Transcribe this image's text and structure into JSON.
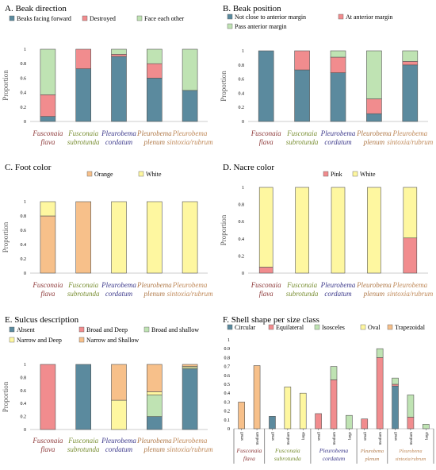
{
  "colors": {
    "slate": "#5B8A9E",
    "pink": "#F18C8E",
    "green": "#BFE3B3",
    "orange": "#F7C08A",
    "yellow": "#FEF7A0",
    "species": [
      "#8E3A3A",
      "#7A8F34",
      "#3E3B8C",
      "#B07A4A",
      "#C08A5A"
    ]
  },
  "chart_data": [
    {
      "type": "bar",
      "stacked": true,
      "title": "A. Beak direction",
      "xlabel": "",
      "ylabel": "Proportion",
      "ylim": [
        0,
        1
      ],
      "yticks": [
        "0",
        "0.2",
        "0.4",
        "0.6",
        "0.8",
        "1"
      ],
      "categories": [
        [
          "Fusconaia",
          "flava"
        ],
        [
          "Fusconaia",
          "subrotunda"
        ],
        [
          "Pleurobema",
          "cordatum"
        ],
        [
          "Pleurobema",
          "plenum"
        ],
        [
          "Pleurobema",
          "sintoxia/rubrum"
        ]
      ],
      "series": [
        {
          "name": "Beaks facing forward",
          "color": "slate",
          "values": [
            0.07,
            0.73,
            0.9,
            0.6,
            0.43
          ]
        },
        {
          "name": "Destroyed",
          "color": "pink",
          "values": [
            0.3,
            0.27,
            0.03,
            0.2,
            0
          ]
        },
        {
          "name": "Face each other",
          "color": "green",
          "values": [
            0.63,
            0,
            0.07,
            0.2,
            0.57
          ]
        }
      ]
    },
    {
      "type": "bar",
      "stacked": true,
      "title": "B. Beak position",
      "xlabel": "",
      "ylabel": "Proportion",
      "ylim": [
        0,
        1
      ],
      "yticks": [
        "0",
        "0.2",
        "0.4",
        "0.6",
        "0.8",
        "1"
      ],
      "categories": [
        [
          "Fusconaia",
          "flava"
        ],
        [
          "Fusconaia",
          "subrotunda"
        ],
        [
          "Pleurobema",
          "cordatum"
        ],
        [
          "Pleurobema",
          "plenum"
        ],
        [
          "Pleurobema",
          "sintoxia/rubrum"
        ]
      ],
      "series": [
        {
          "name": "Not close to anterior margin",
          "color": "slate",
          "values": [
            1,
            0.73,
            0.69,
            0.11,
            0.8
          ]
        },
        {
          "name": "At anterior margin",
          "color": "pink",
          "values": [
            0,
            0.27,
            0.22,
            0.21,
            0.05
          ]
        },
        {
          "name": "Pass anterior margin",
          "color": "green",
          "values": [
            0,
            0,
            0.09,
            0.68,
            0.15
          ]
        }
      ]
    },
    {
      "type": "bar",
      "stacked": true,
      "title": "C. Foot color",
      "xlabel": "",
      "ylabel": "Proportion",
      "ylim": [
        0,
        1
      ],
      "yticks": [
        "0",
        "0.2",
        "0.4",
        "0.6",
        "0.8",
        "1"
      ],
      "categories": [
        [
          "Fusconaia",
          "flava"
        ],
        [
          "Fusconaia",
          "subrotunda"
        ],
        [
          "Pleurobema",
          "cordatum"
        ],
        [
          "Pleurobema",
          "plenum"
        ],
        [
          "Pleurobema",
          "sintoxia/rubrum"
        ]
      ],
      "series": [
        {
          "name": "Orange",
          "color": "orange",
          "values": [
            0.8,
            1,
            0,
            0,
            0
          ]
        },
        {
          "name": "White",
          "color": "yellow",
          "values": [
            0.2,
            0,
            1,
            1,
            1
          ]
        }
      ]
    },
    {
      "type": "bar",
      "stacked": true,
      "title": "D. Nacre color",
      "xlabel": "",
      "ylabel": "Proportion",
      "ylim": [
        0,
        1
      ],
      "yticks": [
        "0",
        "0.2",
        "0.4",
        "0.6",
        "0.8",
        "1"
      ],
      "categories": [
        [
          "Fusconaia",
          "flava"
        ],
        [
          "Fusconaia",
          "subrotunda"
        ],
        [
          "Pleurobema",
          "cordatum"
        ],
        [
          "Pleurobema",
          "plenum"
        ],
        [
          "Pleurobema",
          "sintoxia/rubrum"
        ]
      ],
      "series": [
        {
          "name": "Pink",
          "color": "pink",
          "values": [
            0.07,
            0,
            0,
            0,
            0.41
          ]
        },
        {
          "name": "White",
          "color": "yellow",
          "values": [
            0.93,
            1,
            1,
            1,
            0.59
          ]
        }
      ]
    },
    {
      "type": "bar",
      "stacked": true,
      "title": "E. Sulcus description",
      "xlabel": "",
      "ylabel": "Proportion",
      "ylim": [
        0,
        1
      ],
      "yticks": [
        "0",
        "0.2",
        "0.4",
        "0.6",
        "0.8",
        "1"
      ],
      "categories": [
        [
          "Fusconaia",
          "flava"
        ],
        [
          "Fusconaia",
          "subrotunda"
        ],
        [
          "Pleurobema",
          "cordatum"
        ],
        [
          "Pleurobema",
          "plenum"
        ],
        [
          "Pleurobema",
          "sintoxia/rubrum"
        ]
      ],
      "series": [
        {
          "name": "Absent",
          "color": "slate",
          "values": [
            0,
            1,
            0,
            0.2,
            0.93
          ]
        },
        {
          "name": "Broad and Deep",
          "color": "pink",
          "values": [
            1,
            0,
            0,
            0,
            0
          ]
        },
        {
          "name": "Broad and shallow",
          "color": "green",
          "values": [
            0,
            0,
            0,
            0.33,
            0.02
          ]
        },
        {
          "name": "Narrow and Deep",
          "color": "yellow",
          "values": [
            0,
            0,
            0.45,
            0.05,
            0.02
          ]
        },
        {
          "name": "Narrow and Shallow",
          "color": "orange",
          "values": [
            0,
            0,
            0.55,
            0.42,
            0.03
          ]
        }
      ]
    },
    {
      "type": "bar",
      "stacked": true,
      "title": "F. Shell shape per size class",
      "xlabel": "",
      "ylabel": "",
      "ylim": [
        0,
        1
      ],
      "yticks": [
        "0",
        "0.1",
        "0.2",
        "0.3",
        "0.4",
        "0.5",
        "0.6",
        "0.7",
        "0.8",
        "0.9",
        "1"
      ],
      "groups": [
        {
          "label": [
            "Fusconaia",
            "flava"
          ],
          "bars": [
            "small",
            "medium"
          ]
        },
        {
          "label": [
            "Fusconaia",
            "subrotunda"
          ],
          "bars": [
            "small",
            "medium",
            "large"
          ]
        },
        {
          "label": [
            "Pleurobema",
            "cordatum"
          ],
          "bars": [
            "small",
            "medium",
            "large"
          ]
        },
        {
          "label": [
            "Pleurobema",
            "plenum"
          ],
          "bars": [
            "small",
            "medium"
          ]
        },
        {
          "label": [
            "Pleurobema",
            "sintoxia/rubrum"
          ],
          "bars": [
            "small",
            "medium",
            "large"
          ]
        }
      ],
      "series": [
        {
          "name": "Circular",
          "color": "slate",
          "values": [
            0,
            0,
            0.14,
            0,
            0,
            0,
            0,
            0,
            0,
            0,
            0.48,
            0,
            0
          ]
        },
        {
          "name": "Equilateral",
          "color": "pink",
          "values": [
            0,
            0,
            0,
            0,
            0,
            0.17,
            0.55,
            0,
            0.11,
            0.8,
            0.02,
            0.13,
            0
          ]
        },
        {
          "name": "Isosceles",
          "color": "green",
          "values": [
            0,
            0,
            0,
            0,
            0,
            0,
            0.15,
            0.15,
            0,
            0.1,
            0.07,
            0.25,
            0.05
          ]
        },
        {
          "name": "Oval",
          "color": "yellow",
          "values": [
            0,
            0,
            0,
            0.47,
            0.4,
            0,
            0,
            0,
            0,
            0,
            0,
            0,
            0
          ]
        },
        {
          "name": "Trapezoidal",
          "color": "orange",
          "values": [
            0.3,
            0.71,
            0,
            0,
            0,
            0,
            0,
            0,
            0,
            0,
            0,
            0,
            0
          ]
        }
      ]
    }
  ]
}
